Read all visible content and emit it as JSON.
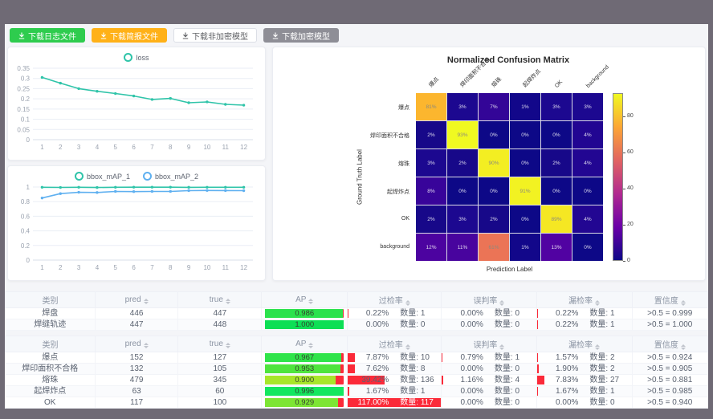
{
  "toolbar": {
    "buttons": [
      {
        "label": "下载日志文件",
        "bg": "#2ecc4e",
        "fg": "#ffffff",
        "border": "transparent"
      },
      {
        "label": "下载简报文件",
        "bg": "#ffb118",
        "fg": "#ffffff",
        "border": "transparent"
      },
      {
        "label": "下载非加密模型",
        "bg": "#ffffff",
        "fg": "#606266",
        "border": "#dcdfe6"
      },
      {
        "label": "下载加密模型",
        "bg": "#8e8e96",
        "fg": "#ffffff",
        "border": "transparent"
      }
    ]
  },
  "loss_chart": {
    "chart_data": {
      "type": "line",
      "x": [
        "1",
        "2",
        "3",
        "4",
        "5",
        "6",
        "7",
        "8",
        "9",
        "10",
        "11",
        "12"
      ],
      "series": [
        {
          "name": "loss",
          "color": "#2fc4a9",
          "values": [
            0.305,
            0.277,
            0.25,
            0.237,
            0.226,
            0.214,
            0.197,
            0.202,
            0.181,
            0.185,
            0.173,
            0.169
          ]
        }
      ],
      "yticks": [
        "0",
        "0.05",
        "0.1",
        "0.15",
        "0.2",
        "0.25",
        "0.3",
        "0.35"
      ],
      "ylim": [
        0,
        0.35
      ],
      "legend_position": "top",
      "grid": "on"
    }
  },
  "map_chart": {
    "chart_data": {
      "type": "line",
      "x": [
        "1",
        "2",
        "3",
        "4",
        "5",
        "6",
        "7",
        "8",
        "9",
        "10",
        "11",
        "12"
      ],
      "series": [
        {
          "name": "bbox_mAP_1",
          "color": "#2fc4a9",
          "values": [
            0.997,
            0.994,
            0.997,
            0.993,
            0.997,
            0.998,
            0.998,
            0.998,
            0.996,
            0.997,
            0.997,
            0.997
          ]
        },
        {
          "name": "bbox_mAP_2",
          "color": "#5fb0f0",
          "values": [
            0.85,
            0.91,
            0.928,
            0.925,
            0.94,
            0.937,
            0.94,
            0.94,
            0.951,
            0.953,
            0.952,
            0.95
          ]
        }
      ],
      "yticks": [
        "0",
        "0.2",
        "0.4",
        "0.6",
        "0.8",
        "1"
      ],
      "ylim": [
        0,
        1
      ],
      "legend_position": "top",
      "grid": "on"
    }
  },
  "confusion_matrix": {
    "title": "Normalized Confusion Matrix",
    "xlabel": "Prediction Label",
    "ylabel": "Ground Truth Label",
    "labels": [
      "爆点",
      "焊印面积不合格",
      "熔珠",
      "起焊炸点",
      "OK",
      "background"
    ],
    "cells": [
      [
        [
          "81%",
          "#fcb62e"
        ],
        [
          "3%",
          "#1c0890"
        ],
        [
          "7%",
          "#330597"
        ],
        [
          "1%",
          "#12078a"
        ],
        [
          "3%",
          "#1c0890"
        ],
        [
          "3%",
          "#1c0890"
        ]
      ],
      [
        [
          "2%",
          "#170889"
        ],
        [
          "93%",
          "#f0f921"
        ],
        [
          "0%",
          "#0d0887"
        ],
        [
          "0%",
          "#0d0887"
        ],
        [
          "0%",
          "#0d0887"
        ],
        [
          "4%",
          "#220692"
        ]
      ],
      [
        [
          "3%",
          "#1c0890"
        ],
        [
          "2%",
          "#170889"
        ],
        [
          "90%",
          "#f3ee22"
        ],
        [
          "0%",
          "#0d0887"
        ],
        [
          "2%",
          "#170889"
        ],
        [
          "4%",
          "#220692"
        ]
      ],
      [
        [
          "8%",
          "#38049a"
        ],
        [
          "0%",
          "#0d0887"
        ],
        [
          "0%",
          "#0d0887"
        ],
        [
          "91%",
          "#f2f222"
        ],
        [
          "0%",
          "#0d0887"
        ],
        [
          "0%",
          "#0d0887"
        ]
      ],
      [
        [
          "2%",
          "#170889"
        ],
        [
          "3%",
          "#1c0890"
        ],
        [
          "2%",
          "#170889"
        ],
        [
          "0%",
          "#0d0887"
        ],
        [
          "89%",
          "#f5e723"
        ],
        [
          "4%",
          "#220692"
        ]
      ],
      [
        [
          "12%",
          "#4c03a0"
        ],
        [
          "11%",
          "#48049e"
        ],
        [
          "61%",
          "#eb7456"
        ],
        [
          "1%",
          "#12078a"
        ],
        [
          "13%",
          "#5102a2"
        ],
        [
          "0%",
          "#0d0887"
        ]
      ]
    ],
    "colorbar": {
      "ticks": [
        0,
        20,
        40,
        60,
        80
      ],
      "vmax": 93,
      "gradient": [
        "#0d0887",
        "#6a00a8",
        "#b12a90",
        "#e16462",
        "#fca636",
        "#f0f921"
      ]
    }
  },
  "tables": {
    "count_label": "数量:",
    "bar_red": "#fb2a39",
    "headers": [
      {
        "label": "类别",
        "sortable": false
      },
      {
        "label": "pred",
        "sortable": true
      },
      {
        "label": "true",
        "sortable": true
      },
      {
        "label": "AP",
        "sortable": true
      },
      {
        "label": "过检率",
        "sortable": true
      },
      {
        "label": "误判率",
        "sortable": true
      },
      {
        "label": "漏检率",
        "sortable": true
      },
      {
        "label": "置信度",
        "sortable": true
      }
    ],
    "summary_rows": [
      {
        "category": "焊盘",
        "pred": "446",
        "true": "447",
        "ap": "0.986",
        "ap_color": "#2ce24d",
        "over_pct": "0.22%",
        "over_count": "1",
        "mis_pct": "0.00%",
        "mis_count": "0",
        "miss_pct": "0.22%",
        "miss_count": "1",
        "confidence": ">0.5 = 0.999"
      },
      {
        "category": "焊缝轨迹",
        "pred": "447",
        "true": "448",
        "ap": "1.000",
        "ap_color": "#0ddf55",
        "over_pct": "0.00%",
        "over_count": "0",
        "mis_pct": "0.00%",
        "mis_count": "0",
        "miss_pct": "0.22%",
        "miss_count": "1",
        "confidence": ">0.5 = 1.000"
      }
    ],
    "class_rows": [
      {
        "category": "爆点",
        "pred": "152",
        "true": "127",
        "ap": "0.967",
        "ap_color": "#2fe44a",
        "over_pct": "7.87%",
        "over_count": "10",
        "mis_pct": "0.79%",
        "mis_count": "1",
        "miss_pct": "1.57%",
        "miss_count": "2",
        "confidence": ">0.5 = 0.924"
      },
      {
        "category": "焊印面积不合格",
        "pred": "132",
        "true": "105",
        "ap": "0.953",
        "ap_color": "#4fe43e",
        "over_pct": "7.62%",
        "over_count": "8",
        "mis_pct": "0.00%",
        "mis_count": "0",
        "miss_pct": "1.90%",
        "miss_count": "2",
        "confidence": ">0.5 = 0.905"
      },
      {
        "category": "熔珠",
        "pred": "479",
        "true": "345",
        "ap": "0.900",
        "ap_color": "#a8e62a",
        "over_pct": "39.42%",
        "over_count": "136",
        "mis_pct": "1.16%",
        "mis_count": "4",
        "miss_pct": "7.83%",
        "miss_count": "27",
        "confidence": ">0.5 = 0.881"
      },
      {
        "category": "起焊炸点",
        "pred": "63",
        "true": "60",
        "ap": "0.996",
        "ap_color": "#13e75f",
        "over_pct": "1.67%",
        "over_count": "1",
        "mis_pct": "0.00%",
        "mis_count": "0",
        "miss_pct": "1.67%",
        "miss_count": "1",
        "confidence": ">0.5 = 0.985"
      },
      {
        "category": "OK",
        "pred": "117",
        "true": "100",
        "ap": "0.929",
        "ap_color": "#7de534",
        "over_pct": "117.00%",
        "over_count": "117",
        "mis_pct": "0.00%",
        "mis_count": "0",
        "miss_pct": "0.00%",
        "miss_count": "0",
        "confidence": ">0.5 = 0.940"
      }
    ]
  }
}
